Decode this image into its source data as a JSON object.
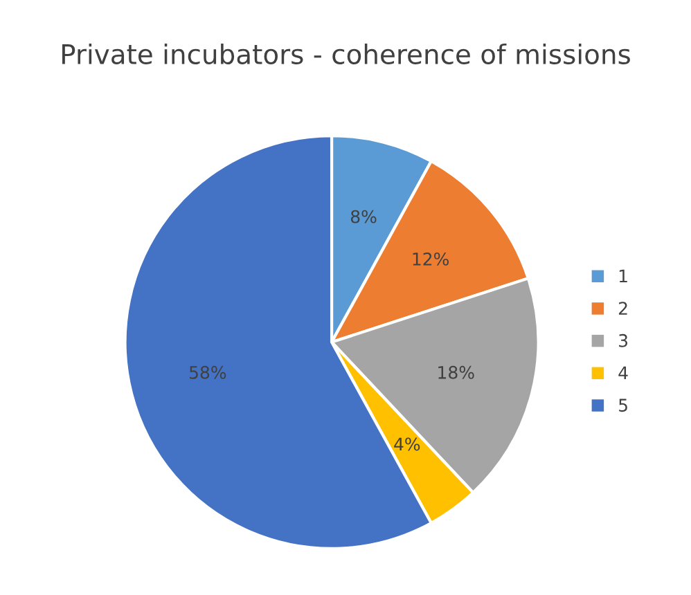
{
  "chart_data": {
    "type": "pie",
    "title": "Private incubators - coherence of missions",
    "categories": [
      "1",
      "2",
      "3",
      "4",
      "5"
    ],
    "values": [
      8,
      12,
      18,
      4,
      58
    ],
    "value_labels": [
      "8%",
      "12%",
      "18%",
      "4%",
      "58%"
    ],
    "colors": [
      "#5b9bd5",
      "#ed7d31",
      "#a5a5a5",
      "#ffc000",
      "#4472c4"
    ],
    "legend": "right"
  }
}
